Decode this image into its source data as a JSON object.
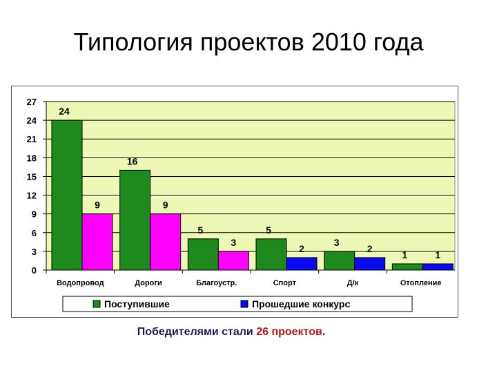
{
  "slide": {
    "title": "Типология проектов 2010 года"
  },
  "caption": {
    "prefix": "Победителями стали ",
    "count": "26",
    "middle": " ",
    "word": "проектов",
    "suffix": "."
  },
  "colors": {
    "plot_bg": "#ecf8b4",
    "grid": "#000000",
    "series_1": "#1e8a1e",
    "series_2": "#ff00ff",
    "series_3": "#0a0af0"
  },
  "chart_data": {
    "type": "bar",
    "categories": [
      "Водопровод",
      "Дороги",
      "Благоустр.",
      "Спорт",
      "Д/к",
      "Отопление"
    ],
    "series": [
      {
        "name": "Поступившие",
        "values": [
          24,
          16,
          5,
          5,
          3,
          1
        ],
        "color": "#1e8a1e"
      },
      {
        "name": "",
        "values": [
          9,
          9,
          3,
          null,
          null,
          null
        ],
        "color": "#ff00ff"
      },
      {
        "name": "Прошедшие конкурс",
        "values": [
          null,
          null,
          null,
          2,
          2,
          1
        ],
        "color": "#0a0af0"
      }
    ],
    "bar_pairs": [
      {
        "category": "Водопровод",
        "first": 24,
        "second": 9,
        "second_series": "magenta"
      },
      {
        "category": "Дороги",
        "first": 16,
        "second": 9,
        "second_series": "magenta"
      },
      {
        "category": "Благоустр.",
        "first": 5,
        "second": 3,
        "second_series": "magenta"
      },
      {
        "category": "Спорт",
        "first": 5,
        "second": 2,
        "second_series": "blue"
      },
      {
        "category": "Д/к",
        "first": 3,
        "second": 2,
        "second_series": "blue"
      },
      {
        "category": "Отопление",
        "first": 1,
        "second": 1,
        "second_series": "blue"
      }
    ],
    "yticks": [
      0,
      3,
      6,
      9,
      12,
      15,
      18,
      21,
      24,
      27
    ],
    "ylim": [
      0,
      27
    ],
    "grid": true,
    "legend_position": "bottom",
    "legend": [
      {
        "label": "Поступившие",
        "color": "#1e8a1e"
      },
      {
        "label": "Прошедшие конкурс",
        "color": "#0a0af0"
      }
    ],
    "title": "",
    "xlabel": "",
    "ylabel": ""
  }
}
